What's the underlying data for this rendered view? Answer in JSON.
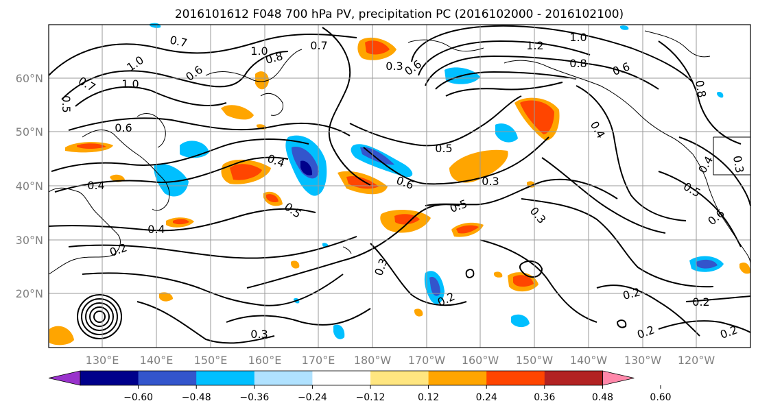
{
  "title": "2016101612 F048 700 hPa PV, precipitation PC (2016102000 - 2016102100)",
  "map": {
    "lat_labels": [
      "60°N",
      "50°N",
      "40°N",
      "30°N",
      "20°N"
    ],
    "lon_labels": [
      "130°E",
      "140°E",
      "150°E",
      "160°E",
      "170°E",
      "180°W",
      "170°W",
      "160°W",
      "150°W",
      "140°W",
      "130°W",
      "120°W"
    ],
    "contour_labels": [
      {
        "text": "0.7"
      },
      {
        "text": "1.0"
      },
      {
        "text": "0.8"
      },
      {
        "text": "0.7"
      },
      {
        "text": "1.2"
      },
      {
        "text": "1.0"
      },
      {
        "text": "0.8"
      },
      {
        "text": "0.6"
      },
      {
        "text": "1.0"
      },
      {
        "text": "0.7"
      },
      {
        "text": "1.0"
      },
      {
        "text": "0.6"
      },
      {
        "text": "0.3"
      },
      {
        "text": "0.6"
      },
      {
        "text": "0.5"
      },
      {
        "text": "0.4"
      },
      {
        "text": "0.6"
      },
      {
        "text": "0.6"
      },
      {
        "text": "0.3"
      },
      {
        "text": "0.4"
      },
      {
        "text": "0.5"
      },
      {
        "text": "0.5"
      },
      {
        "text": "0.3"
      },
      {
        "text": "0.4"
      },
      {
        "text": "0.2"
      },
      {
        "text": "0.3"
      },
      {
        "text": "0.2"
      },
      {
        "text": "0.2"
      },
      {
        "text": "0.3"
      },
      {
        "text": "0.2"
      },
      {
        "text": "0.2"
      },
      {
        "text": "0.2"
      },
      {
        "text": "0.5"
      },
      {
        "text": "0.6"
      },
      {
        "text": "0.4"
      },
      {
        "text": "0.3"
      },
      {
        "text": "0.8"
      },
      {
        "text": "0.5"
      },
      {
        "text": "0.4"
      }
    ]
  },
  "colorbar": {
    "tick_labels": [
      "−0.60",
      "−0.48",
      "−0.36",
      "−0.24",
      "−0.12",
      "0.12",
      "0.24",
      "0.36",
      "0.48",
      "0.60"
    ],
    "colors": [
      "#9932cc",
      "#00008b",
      "#3355cc",
      "#00bfff",
      "#b0e2ff",
      "#ffffff",
      "#ffe680",
      "#ffa500",
      "#ff4500",
      "#b22222",
      "#ff88aa"
    ]
  },
  "colors": {
    "neg_light": "#b0e2ff",
    "neg_mid": "#00bfff",
    "neg_strong": "#3355cc",
    "neg_max": "#00008b",
    "pos_light": "#ffe680",
    "pos_mid": "#ffa500",
    "pos_strong": "#ff4500",
    "pos_max": "#b22222"
  }
}
